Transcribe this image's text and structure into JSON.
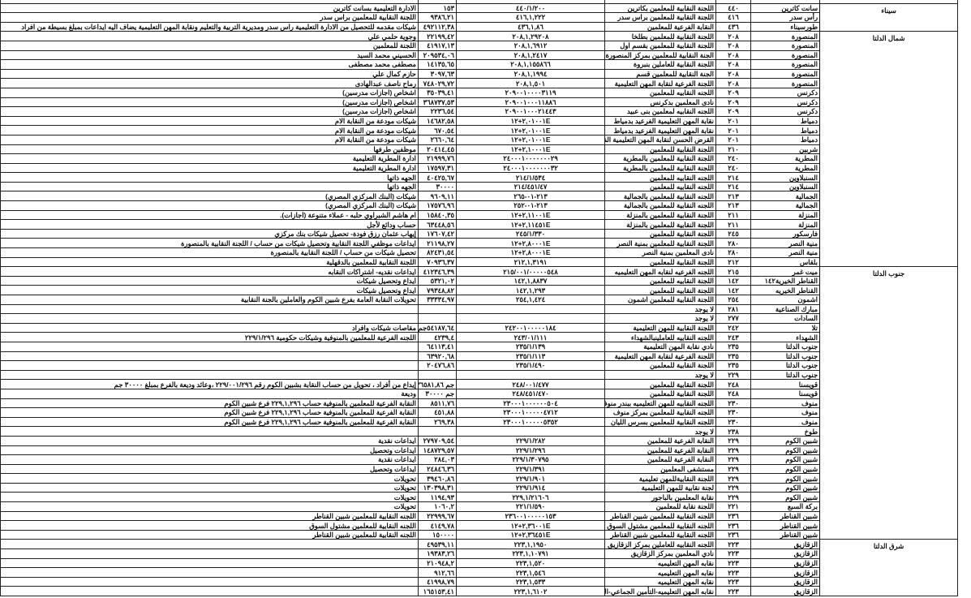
{
  "groups": [
    {
      "region": "سيناء",
      "rows": [
        [
          "سانت كاترين",
          "٤٤٠",
          "اللجنة النقابية للمعلمين بكاترين",
          "٤٤٠/١/٢٠٠",
          "١٥٣",
          "الادارة التعليمية بسانت كاترين"
        ],
        [
          "رأس سدر",
          "٤١٦",
          "اللجنة النقابية للمعلمين براس سدر",
          "٤١٦,١,٢٢٢",
          "٩٣٨٦,٢١",
          "اللجنة النقابية للمعلمين براس سدر"
        ],
        [
          "طورسيناء",
          "٤٣٦",
          "النقابة الفرعية للمعلمين",
          "٤٣٦,١,٨٦",
          "٤٩٢١١٢,٣٨",
          "شيكات مقدمه للتحصيل من الادارة التعليمية راس سدر ومديرية التربية والتعليم ونقابة المهن التعليمية يضاف اليه ايداعات بمبلغ بسيطة من افراد"
        ]
      ]
    },
    {
      "region": "شمال الدلتا",
      "rows": [
        [
          "المنصورة",
          "٢٠٨",
          "اللجنة النقابية للمعلمين بطلخا",
          "٢٠٨,١,٢٩٢٠٨",
          "٢٢١٩٩,٤٢",
          "وجوية حلمي علي"
        ],
        [
          "المنصورة",
          "٢٠٨",
          "اللجنة النقابية للمعلمين بقسم اول",
          "٢٠٨,١,٦٩١٢",
          "٤١٩١٧,١٣",
          "اللجنة للمعلمين"
        ],
        [
          "المنصورة",
          "٢٠٨",
          "الجنة النقابية للمعلمين بمركز المنصورة",
          "٢٠٨,١,٢٤١٧",
          "٢٠٩٥٣٤,٠٦",
          "الحسيني محمد السيد"
        ],
        [
          "المنصورة",
          "٢٠٨",
          "اللجنة النقابية للعاملين بنبروة",
          "٢٠٨,١,١٥٥٨٦٦",
          "١٤١٣٥,٦٥",
          "مصطفى محمد مصطفى"
        ],
        [
          "المنصورة",
          "٢٠٨",
          "الجنة النقابية للمعلمين قسم",
          "٢٠٨,١,١٩٩٤",
          "٣٠٩٧,٦٣",
          "حازم كمال علي"
        ],
        [
          "المنصورة",
          "٢٠٨",
          "اللجنة الفرعية لنقابة المهن التعليمية",
          "٢٠٨,١,٥٠١",
          "٧٤٨٠٢٩,٧٢",
          "رماح ناصف عبدالهادى"
        ],
        [
          "دكرنس",
          "٢٠٩",
          "اللجنه النقابيه للمعلمين",
          "٢٠٩٠٠١٠٠٠٠٣١١٩",
          "٣٥٠٣٩,٤١",
          "اشخاص (اجازات مدرسين)"
        ],
        [
          "دكرنس",
          "٢٠٩",
          "نادى المعلمين بدكرنس",
          "٢٠٩٠٠١٠٠٠١١٨٨٦",
          "٣٦٨٧٣٧,٥٣",
          "اشخاص (اجازات مدرسين)"
        ],
        [
          "دكرنس",
          "٢٠٩",
          "اللجنه النقابيه لمعلمين بنى عبيد",
          "٢٠٩٠٠١٠٠٠٢١٤٤٣",
          "٢٢٣٦,٥٤",
          "اشخاص (اجازات مدرسين)"
        ],
        [
          "دمياط",
          "٢٠١",
          "نقابة المهن التعليمية الفرعيد بدمياط",
          "٢,٠١٠٠١E+١٢",
          "١٤٦٨٢,٥٨",
          "شيكات مودعة من النقابة الام"
        ],
        [
          "دمياط",
          "٢٠١",
          "نقابة المهن التعليمية الفرعيد بدمياط",
          "٢,٠١٠٠١E+١٢",
          "٦٧٠,٥٤",
          "شيكات مودعة من النقابة الام"
        ],
        [
          "دمياط",
          "٢٠١",
          "القرض الحسن لنقابة المهن التعليمية الفرعية",
          "٢,٠١٠٠١E+١٢",
          "٢٦٦٠,٦٤",
          "شيكات مودعة من النقابة الام"
        ],
        [
          "شربين",
          "٢١٠",
          "اللجنة النقابية للمعلمين",
          "٢,١٠٠٠١E+١٢",
          "٢٠٤١٤,٤٥",
          "موظفين طرفها"
        ],
        [
          "المطرية",
          "٢٤٠",
          "اللجنة النقابية للمعلمين بالمطرية",
          "٢٤٠٠٠١٠٠٠٠٠٠٠٢٩",
          "٢١٩٩٩,٧٦",
          "ادارة المطرية التعليمية"
        ],
        [
          "المطرية",
          "٢٤٠",
          "اللجنة النقابية للمعلمين بالمطرية",
          "٢٤٠٠٠١٠٠٠٠٠٠٠٣٢",
          "١٧٥٩٧,٣١",
          "ادارة المطرية التعليمية"
        ],
        [
          "السنبلاوين",
          "٢١٤",
          "اللجنه النقابيه للمعلمين",
          "٢١٤/١/٥٣٤",
          "٤٠٤٢٥,٦٧",
          "الجهه ذاتها"
        ],
        [
          "السنبلاوين",
          "٢١٤",
          "اللجنه النقابيه للمعلمين",
          "٢١٤/٤٥١/٤٧",
          "٣٠٠٠٠",
          "الجهه ذاتها"
        ],
        [
          "الجمالية",
          "٢١٣",
          "اللجنه النقابية للمعلمين بالجمالية",
          "٢١٣-٠١-٢٦٥",
          "٩٦٠٩,١١",
          "شيكات (البنك المركزي المصري)"
        ],
        [
          "الجمالية",
          "٢١٣",
          "اللجنه النقابية للمعلمين بالجمالية",
          "٢١٣-٠١-٢٥٢",
          "١٧٥٧٦,٩٦",
          "شيكات (البنك المركزي المصري)"
        ],
        [
          "المنزلة",
          "٢١١",
          "اللجنة النقابية للمعلمين بالمنزلة",
          "٢,١١٠٠١E+١٢",
          "١٥٨٤٠,٣٥",
          "ام هاشم الشبراوي حلبه - عملاء متنوعة (اجازات)."
        ],
        [
          "المنزلة",
          "٢١١",
          "اللجنة النقابية للمعلمين بالمنزلة",
          "٢,١١٤٥١E+١٢",
          "٦٣٤٤٨,٥٦",
          "حساب ودائع لأجل"
        ],
        [
          "فارسكور",
          "٢٤٥",
          "اللجنة النقابية للمعلمين",
          "٢٤٥/١/٣٣٠",
          "١٧٦٠٧,٤٢",
          "إيهاب عثمان رزق فودة- تحصيل شيكات بنك مركزي"
        ],
        [
          "منية النصر",
          "٢٨٠",
          "اللجنة النقابية للمعلمين بمنية النصر",
          "٢,٨٠٠٠١E+١٢",
          "٢١١٩٨,٢٧",
          "ايداعات موظفي اللجنة النقابية وتحصيل شيكات من حساب / اللجنة النقابية بالمنصورة"
        ],
        [
          "منية النصر",
          "٢٨٠",
          "نادى المعلمين بمنية النصر",
          "٢,٨٠٠٠١E+١٢",
          "٨٢٤٣١,٥٤",
          "تحصيل شيكات من حساب / اللجنة النقابية بالمنصورة"
        ],
        [
          "بلقاس",
          "٢١٢",
          "اللجنة النقابية للمعلمين",
          "٢١٢,١,٣١٩١",
          "٧٠٩٣٦,٣٧",
          "اللجنة النقابية للمعلمين بالدقهلية"
        ]
      ]
    },
    {
      "region": "جنوب الدلتا",
      "rows": [
        [
          "ميت غمر",
          "٢١٥",
          "اللجنه الفرعيه لنقابه المهن التعليميه",
          "٢١٥/٠٠١/٠٠٠٠٠٥٤٨",
          "٤١٢٣٤٦,٣٩",
          "ايداعات نقديه- اشتراكات النقابه"
        ],
        [
          "القناطر الخيرية١٤٢",
          "١٤٢",
          "اللجنة النقابيه للمعلمين",
          "١٤٢,١,٨٨٣٧",
          "٥٣٢١,٠٢",
          "ايداع وتحصيل شيكات"
        ],
        [
          "القناطر الخيريه",
          "١٤٢",
          "اللجنة النقابيه للمعلمين",
          "١٤٢,١,٢٩٣",
          "٧٩٣٤٨,٨٢",
          "ايداع وتحصيل شيكات"
        ],
        [
          "اشمون",
          "٢٥٤",
          "اللجنة النقابية للمعلمين اشمون",
          "٢٥٤,١,٤٢٤",
          "٣٣٣٣٤,٩٧",
          "تحويلات النقابة العامة بفرع شبين الكوم والعاملين بالجنة النقابية"
        ],
        [
          "مبارك الصناعية",
          "٢٨١",
          "لا يوجد",
          "",
          "",
          ""
        ],
        [
          "السادات",
          "٢٧٧",
          "لا يوجد",
          "",
          "",
          ""
        ],
        [
          "تلا",
          "٢٤٢",
          "اللجنة النقابية للمهن التعليمية",
          "٢٤٢٠٠١٠٠٠٠٠١٨٤",
          "٥٤١٨٧,٦٤جم",
          "مقاصات شيكات وافراد"
        ],
        [
          "الشهداء",
          "٢٤٣",
          "اللجنه النقابيه للعاملينبالشهداء",
          "٢٤٣/٠١/١١١",
          "٤٢٣٩,٤",
          "اللجنه الفرعية للمعلمين بالمنوفية وشيكات حكومية ٢٢٩/١/٢٩٦"
        ],
        [
          "جنوب الدلتا",
          "٢٣٥",
          "نادي نقابة المهن التعليمية",
          "٢٣٥/١/١٣٩",
          "٦٤١١٣,٤١",
          ""
        ],
        [
          "جنوب الدلتا",
          "٢٣٥",
          "اللجنة الفرعية لنقابة المهن التعليمية",
          "٢٣٥/١/١١٣",
          "٦٣٩٢٠,٦٨",
          ""
        ],
        [
          "جنوب الدلتا",
          "٢٣٥",
          "اللجنة النقابية للمعلمين",
          "٢٣٥/١/٤٩٠",
          "٢٠٤٧٦,٨٦",
          ""
        ],
        [
          "جنوب الدلتا",
          "٢٢٩",
          "لا يوجد",
          "",
          "",
          ""
        ],
        [
          "قويسنا",
          "٢٤٨",
          "اللجنة النقابية للمعلمين",
          "٢٤٨/٠٠١/٤٧٧",
          "جم ٣٦٥٨١,٨٦",
          "إيداع من أفراد ، تحويل من حساب النقابة بشبين الكوم رقم ٢٢٩/٠٠١/٢٩٦ ،وعائد وديعة بالفرع بمبلغ ٣٠٠٠٠ جم"
        ],
        [
          "قويسنا",
          "٢٤٨",
          "اللجنة النقابية للمعلمين",
          "٢٤٨/٤٥١/٤٧٠",
          "جم ٣٠٠٠٠",
          "وديعة"
        ],
        [
          "منوف",
          "٢٣٠",
          "اللجنه النقابيه للمهن التعليميه ببندر منوف",
          "٢٣٠٠٠١٠٠٠٠٠٠٥٠٤",
          "٨٥١١,٧٦",
          "النقابة الفرعية للمعلمين بالمنوفية حساب ٢٢٩,١,٢٩٦ فرع شبين الكوم"
        ],
        [
          "منوف",
          "٢٣٠",
          "اللجنه النقابية للمعلمين بمركز منوف",
          "٢٣٠٠٠١٠٠٠٠٠٤٧١٢",
          "٤٥١,٨٨",
          "النقابة الفرعية للمعلمين بالمنوفية حساب ٢٢٩,١,٢٩٦ فرع شبين الكوم"
        ],
        [
          "منوف",
          "٢٣٠",
          "اللجنه النقابية للمعلمين بسرس الليان",
          "٢٣٠٠٠١٠٠٠٠٠٥٣٥٢",
          "٢٦٩,٣٨",
          "النقابة الفرعية للمعلمين بالمنوفية حساب ٢٢٩,١,٢٩٦ فرع شبين الكوم"
        ],
        [
          "طوخ",
          "٢٣٨",
          "لا يوجد",
          "",
          "",
          ""
        ],
        [
          "شبين الكوم",
          "٢٢٩",
          "النقابة الفرعية للمعلمين",
          "٢٢٩/١/٢٨٢",
          "٢٧٩٧٠٩,٥٤",
          "ايداعات نقدية"
        ],
        [
          "شبين الكوم",
          "٢٢٩",
          "النقابة الفرعية للمعلمين",
          "٢٢٩/١/٢٩٦",
          "١٤٨٧٢٩,٥٧",
          "ايداعات وتحصيل"
        ],
        [
          "شبين الكوم",
          "٢٢٩",
          "النقابة الفرعية للمعلمين",
          "٢٢٩/١/٣٠٧٩٥",
          "٢٨٤,٠٣",
          "ايداعات نقدية"
        ],
        [
          "شبين الكوم",
          "٢٢٩",
          "مستشفى المعلمين",
          "٢٢٩/١/٣٩١",
          "٢٤٨٤٦,٣٦",
          "ايداعات وتحصيل"
        ],
        [
          "شبين الكوم",
          "٢٢٩",
          "اللجنة النقابيةللمهن تعليمية",
          "٢٢٩/١/٩٠١",
          "٣٩٤٦٠,٨٦",
          "تحويلات"
        ],
        [
          "شبين الكوم",
          "٢٢٩",
          "لجنة نقابية للمهن التعليمية",
          "٢٢٩/١/٩١٤",
          "١٣٠٣٩٨,٣١",
          "تحويلات"
        ],
        [
          "شبين الكوم",
          "٢٢٩",
          "نقابة المعلمين بالباجور",
          "٢٢٩,١/٢١٦٠٦",
          "١١٩٤,٩٣",
          "تحويلات"
        ],
        [
          "بركة السبع",
          "٢٢١",
          "اللجنة نقابة للمعلمين",
          "٢٢١/١/٥٩٠",
          "١٠٦٠,٢",
          "تحويلات"
        ],
        [
          "شبين القناطر",
          "٢٣٦",
          "اللجنه النقابية للمعلمين شبين القناطر",
          "٢٣٦٠٠١٠٠٠٠٠١٥٣",
          "٢٢٩٩٩,٦٧",
          "اللجنه النقابية للمعلمين شبين القناطر"
        ],
        [
          "شبين القناطر",
          "٢٣٦",
          "اللجنه النقابية للمعلمين مشتول السوق",
          "٢,٣٦٠٠١E+١٢",
          "٤١٤٩,٧٨",
          "اللجنه النقابية للمعلمين مشتول السوق"
        ],
        [
          "شبين القناطر",
          "٢٣٦",
          "اللجنه النقابية للمعلمين شبين القناطر",
          "٢,٣٦٤٥١E+١٢",
          "١٥٠٠٠٠",
          "اللجنه النقابية للمعلمين شبين القناطر"
        ]
      ]
    },
    {
      "region": "شرق الدلتا",
      "rows": [
        [
          "الزقازيق",
          "٢٢٣",
          "اللجنه النقابيه للعاملين بمركز الزقازيق",
          "٢٢٣,١,١٩٥٠",
          "٤٩٥٣٩,١١",
          ""
        ],
        [
          "الزقازيق",
          "٢٢٣",
          "نادي المعلمين بمركز الزقازيق",
          "٢٢٣,١,١٠٧٩١",
          "١٩٣٨٣,٢٦",
          ""
        ],
        [
          "الزقازيق",
          "٢٢٣",
          "نقابه المهن التعليميه",
          "٢٢٣,١,٥٢٠",
          "٢١٠٩٤٨,٢",
          ""
        ],
        [
          "الزقازيق",
          "٢٢٣",
          "نقابه المهن التعليميه",
          "٢٢٣,١,٥٤٦",
          "٩١٢,٦٦",
          ""
        ],
        [
          "الزقازيق",
          "٢٢٣",
          "نقابه المهن التعليميه",
          "٢٢٣,١,٥٣٣",
          "٤١٩٩٨,٧٩",
          ""
        ],
        [
          "الزقازيق",
          "٢٢٣",
          "نقابه المهن التعليميه-التأمين الجماعي-الشرقيه",
          "٢٢٣,١,٦١٠٢",
          "١٦٥١٥٣,٤١",
          ""
        ]
      ]
    }
  ]
}
